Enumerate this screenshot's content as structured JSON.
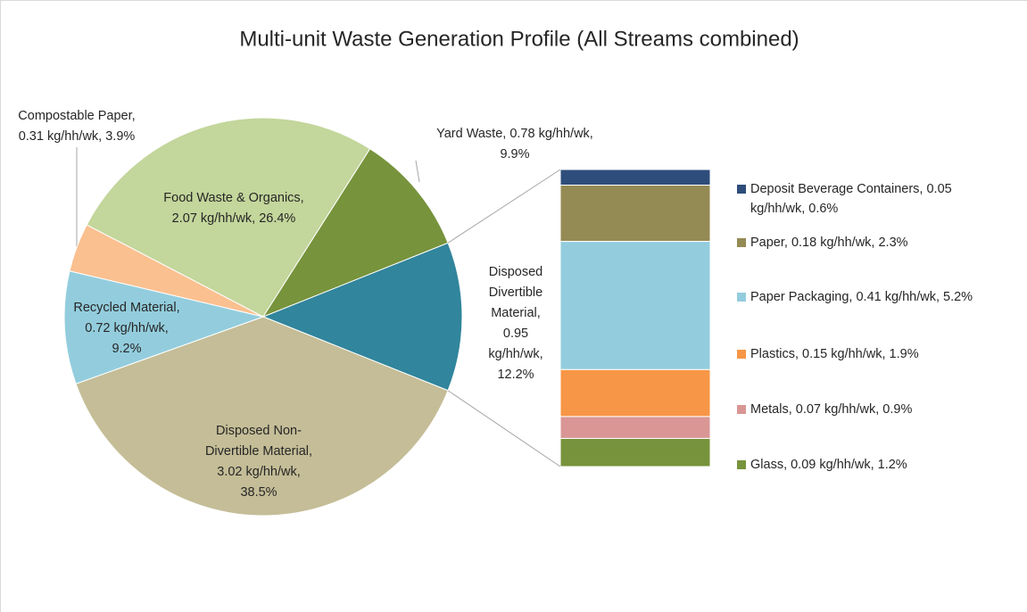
{
  "chart_data": {
    "type": "pie-of-bar",
    "title": "Multi-unit Waste Generation Profile (All Streams combined)",
    "values": [
      0.95,
      3.02,
      0.72,
      0.31,
      2.07,
      0.78
    ],
    "value_labels": [
      [
        "Disposed",
        "Divertible",
        "Material,",
        "0.95",
        "kg/hh/wk,",
        "12.2%"
      ],
      [
        "Disposed Non-",
        "Divertible Material,",
        "3.02 kg/hh/wk,",
        "38.5%"
      ],
      [
        "Recycled Material,",
        "0.72 kg/hh/wk,",
        "9.2%"
      ],
      [
        "Compostable Paper,",
        "0.31 kg/hh/wk, 3.9%"
      ],
      [
        "Food Waste & Organics,",
        "2.07 kg/hh/wk, 26.4%"
      ],
      [
        "Yard Waste, 0.78 kg/hh/wk,",
        "9.9%"
      ]
    ],
    "colors": [
      "#31859c",
      "#c4bd97",
      "#93cddd",
      "#fac090",
      "#c3d69b",
      "#77933c"
    ],
    "bar": {
      "values": [
        0.05,
        0.18,
        0.41,
        0.15,
        0.07,
        0.09
      ],
      "value_labels": [
        [
          "Deposit Beverage Containers, 0.05",
          "kg/hh/wk, 0.6%"
        ],
        [
          "Paper, 0.18 kg/hh/wk, 2.3%"
        ],
        [
          "Paper Packaging, 0.41 kg/hh/wk, 5.2%"
        ],
        [
          "Plastics, 0.15 kg/hh/wk, 1.9%"
        ],
        [
          "Metals, 0.07 kg/hh/wk, 0.9%"
        ],
        [
          "Glass, 0.09 kg/hh/wk, 1.2%"
        ]
      ],
      "colors": [
        "#2e4d7b",
        "#948a54",
        "#93cddd",
        "#f79646",
        "#d99694",
        "#77933c"
      ]
    }
  }
}
